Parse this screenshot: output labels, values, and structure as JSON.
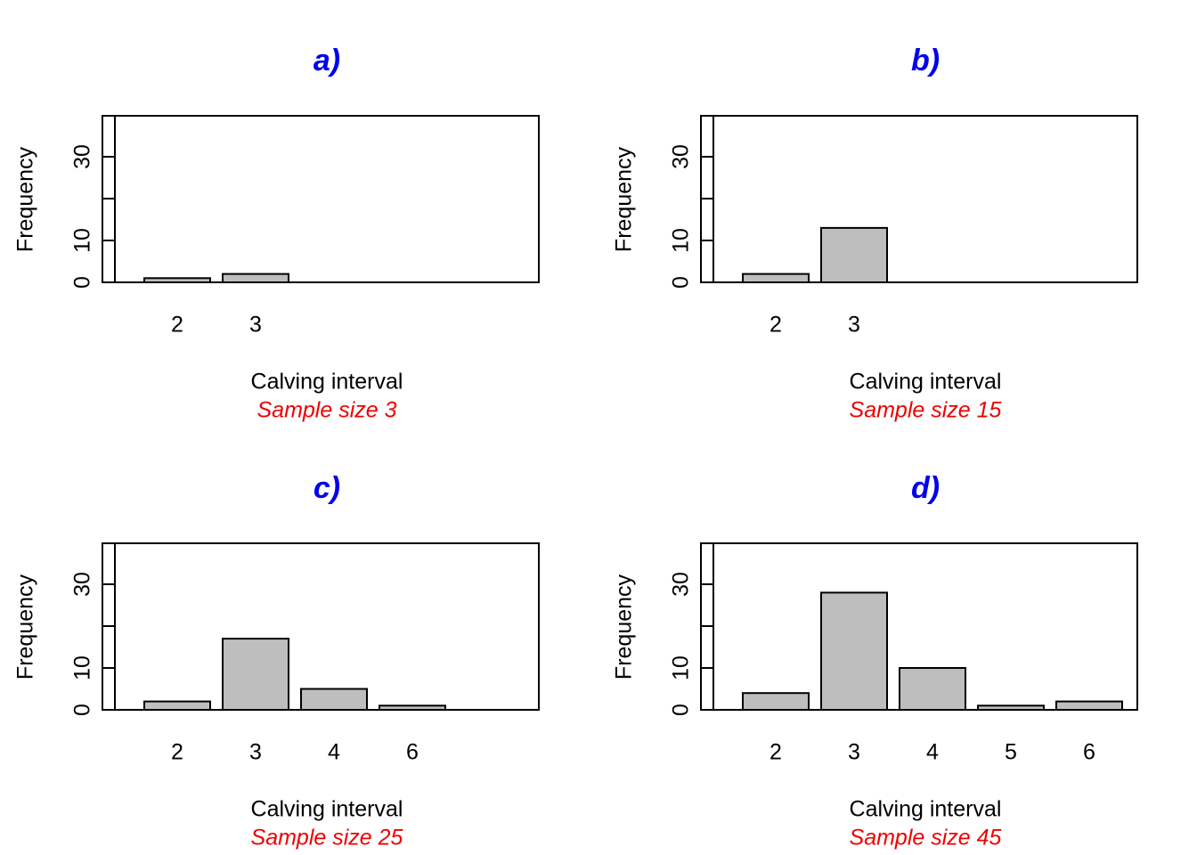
{
  "chart_data": [
    {
      "type": "bar",
      "title": "a)",
      "xlabel": "Calving interval",
      "ylabel": "Frequency",
      "subtitle": "Sample size 3",
      "categories": [
        "2",
        "3"
      ],
      "values": [
        1,
        2
      ],
      "ylim": [
        0,
        40
      ],
      "yticks": [
        0,
        10,
        30
      ],
      "title_color": "#0000ee",
      "subtitle_color": "#ee0000",
      "bar_color": "#bebebe"
    },
    {
      "type": "bar",
      "title": "b)",
      "xlabel": "Calving interval",
      "ylabel": "Frequency",
      "subtitle": "Sample size 15",
      "categories": [
        "2",
        "3"
      ],
      "values": [
        2,
        13
      ],
      "ylim": [
        0,
        40
      ],
      "yticks": [
        0,
        10,
        30
      ],
      "title_color": "#0000ee",
      "subtitle_color": "#ee0000",
      "bar_color": "#bebebe"
    },
    {
      "type": "bar",
      "title": "c)",
      "xlabel": "Calving interval",
      "ylabel": "Frequency",
      "subtitle": "Sample size 25",
      "categories": [
        "2",
        "3",
        "4",
        "6"
      ],
      "values": [
        2,
        17,
        5,
        1
      ],
      "ylim": [
        0,
        40
      ],
      "yticks": [
        0,
        10,
        30
      ],
      "title_color": "#0000ee",
      "subtitle_color": "#ee0000",
      "bar_color": "#bebebe"
    },
    {
      "type": "bar",
      "title": "d)",
      "xlabel": "Calving interval",
      "ylabel": "Frequency",
      "subtitle": "Sample size 45",
      "categories": [
        "2",
        "3",
        "4",
        "5",
        "6"
      ],
      "values": [
        4,
        28,
        10,
        1,
        2
      ],
      "ylim": [
        0,
        40
      ],
      "yticks": [
        0,
        10,
        30
      ],
      "title_color": "#0000ee",
      "subtitle_color": "#ee0000",
      "bar_color": "#bebebe"
    }
  ]
}
